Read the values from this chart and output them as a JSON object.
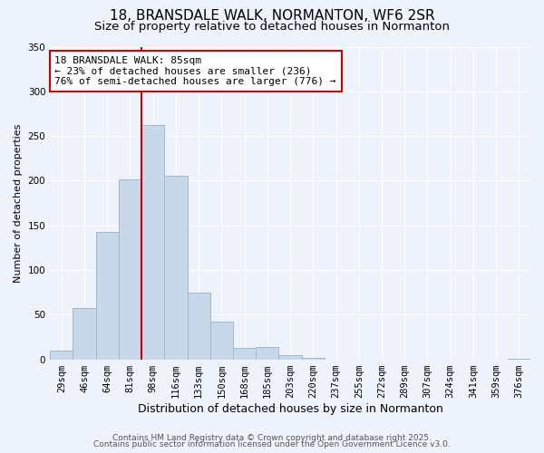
{
  "title": "18, BRANSDALE WALK, NORMANTON, WF6 2SR",
  "subtitle": "Size of property relative to detached houses in Normanton",
  "xlabel": "Distribution of detached houses by size in Normanton",
  "ylabel": "Number of detached properties",
  "bar_color": "#c8d8e8",
  "bar_edge_color": "#a0b8d0",
  "background_color": "#eef2fb",
  "grid_color": "#ffffff",
  "bin_labels": [
    "29sqm",
    "46sqm",
    "64sqm",
    "81sqm",
    "98sqm",
    "116sqm",
    "133sqm",
    "150sqm",
    "168sqm",
    "185sqm",
    "203sqm",
    "220sqm",
    "237sqm",
    "255sqm",
    "272sqm",
    "289sqm",
    "307sqm",
    "324sqm",
    "341sqm",
    "359sqm",
    "376sqm"
  ],
  "bar_heights": [
    10,
    57,
    143,
    201,
    262,
    205,
    75,
    42,
    13,
    14,
    5,
    2,
    0,
    0,
    0,
    0,
    0,
    0,
    0,
    0,
    1
  ],
  "vline_bin_index": 3,
  "vline_side": "right",
  "vline_color": "#cc0000",
  "ylim": [
    0,
    350
  ],
  "yticks": [
    0,
    50,
    100,
    150,
    200,
    250,
    300,
    350
  ],
  "annotation_title": "18 BRANSDALE WALK: 85sqm",
  "annotation_line2": "← 23% of detached houses are smaller (236)",
  "annotation_line3": "76% of semi-detached houses are larger (776) →",
  "annotation_box_color": "#ffffff",
  "annotation_box_edge": "#cc0000",
  "footer1": "Contains HM Land Registry data © Crown copyright and database right 2025.",
  "footer2": "Contains public sector information licensed under the Open Government Licence v3.0.",
  "title_fontsize": 11,
  "subtitle_fontsize": 9.5,
  "xlabel_fontsize": 9,
  "ylabel_fontsize": 8,
  "tick_fontsize": 7.5,
  "annotation_fontsize": 8,
  "footer_fontsize": 6.5
}
